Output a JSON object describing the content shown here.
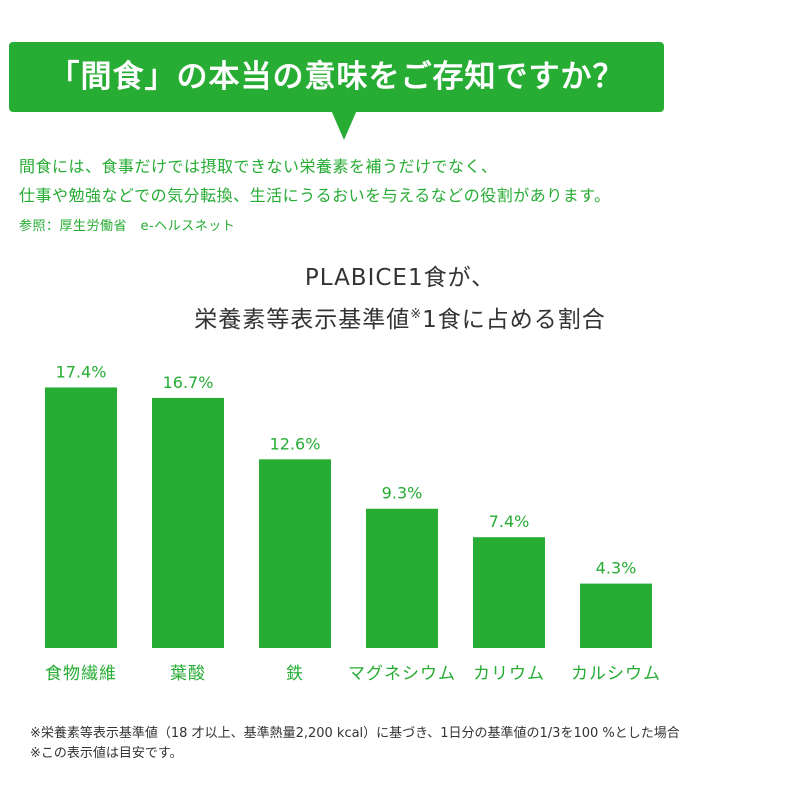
{
  "header": {
    "banner_text": "「間食」の本当の意味をご存知ですか？"
  },
  "intro": {
    "line1": "間食には、食事だけでは摂取できない栄養素を補うだけでなく、",
    "line2": "仕事や勉強などでの気分転換、生活にうるおいを与えるなどの役割があります。",
    "reference": "参照：厚生労働省　e-ヘルスネット"
  },
  "chart_data": {
    "type": "bar",
    "title_line1": "PLABICE1食が、",
    "title_line2": "栄養素等表示基準値",
    "title_sup": "※",
    "title_line2_suffix": "1食に占める割合",
    "categories": [
      "食物繊維",
      "葉酸",
      "鉄",
      "マグネシウム",
      "カリウム",
      "カルシウム"
    ],
    "values": [
      17.4,
      16.7,
      12.6,
      9.3,
      7.4,
      4.3
    ],
    "value_labels": [
      "17.4%",
      "16.7%",
      "12.6%",
      "9.3%",
      "7.4%",
      "4.3%"
    ],
    "ylim": [
      0,
      19.3
    ],
    "bar_color": "#27ac34",
    "label_color": "#27ac34",
    "grid": false
  },
  "footnotes": {
    "note1": "※栄養素等表示基準値（18 才以上、基準熱量2,200 kcal）に基づき、1日分の基準値の1/3を100 %とした場合",
    "note2": "※この表示値は目安です。"
  },
  "colors": {
    "accent": "#27ac34",
    "text": "#333333"
  }
}
